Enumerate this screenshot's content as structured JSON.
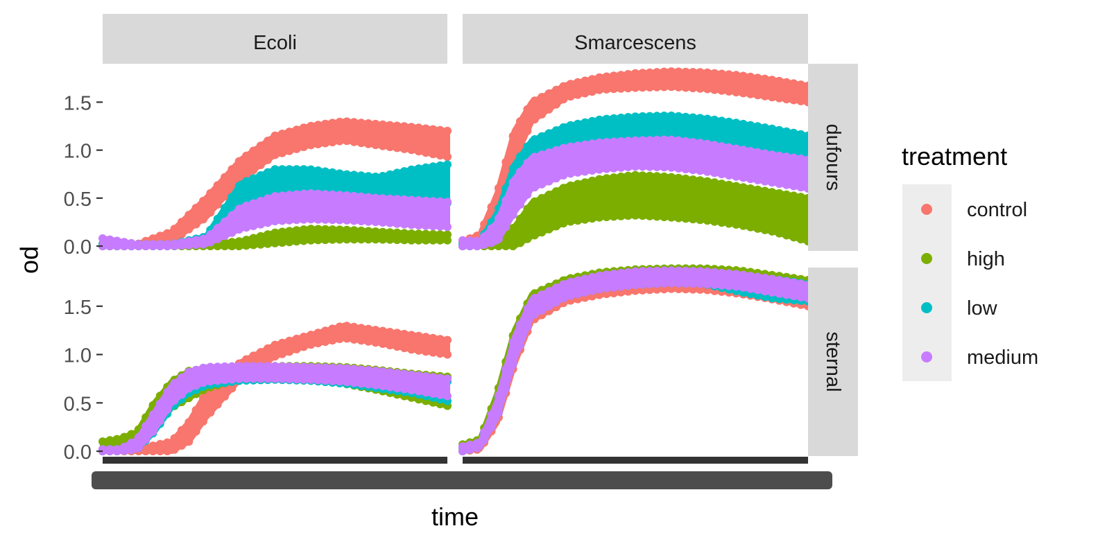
{
  "chart_data": {
    "type": "scatter",
    "xlabel": "time",
    "ylabel": "od",
    "ylim": [
      -0.05,
      1.9
    ],
    "yticks": [
      0.0,
      0.5,
      1.0,
      1.5
    ],
    "ytick_labels": [
      "0.0",
      "0.5",
      "1.0",
      "1.5"
    ],
    "x_tick_labels_overplotted": true,
    "grid": false,
    "legend_placement": "right",
    "legend": {
      "title": "treatment",
      "entries": [
        {
          "label": "control",
          "color": "#F8766D"
        },
        {
          "label": "high",
          "color": "#7CAE00"
        },
        {
          "label": "low",
          "color": "#00BFC4"
        },
        {
          "label": "medium",
          "color": "#C77CFF"
        }
      ]
    },
    "facet_columns": [
      "Ecoli",
      "Smarcescens"
    ],
    "facet_rows": [
      "dufours",
      "sternal"
    ],
    "x_domain": [
      0,
      1
    ],
    "panels": [
      {
        "column": "Ecoli",
        "row": "dufours",
        "series": [
          {
            "name": "control",
            "bands": [
              {
                "x": [
                  0,
                  0.1,
                  0.2,
                  0.3,
                  0.4,
                  0.5,
                  0.6,
                  0.7,
                  0.8,
                  0.9,
                  1.0
                ],
                "lower": [
                  0.0,
                  0.0,
                  0.05,
                  0.3,
                  0.7,
                  0.95,
                  1.05,
                  1.1,
                  1.05,
                  1.0,
                  0.93
                ],
                "upper": [
                  0.02,
                  0.02,
                  0.15,
                  0.5,
                  0.9,
                  1.15,
                  1.25,
                  1.3,
                  1.27,
                  1.24,
                  1.2
                ]
              }
            ]
          },
          {
            "name": "high",
            "bands": [
              {
                "x": [
                  0,
                  0.1,
                  0.2,
                  0.3,
                  0.4,
                  0.5,
                  0.6,
                  0.7,
                  0.8,
                  0.9,
                  1.0
                ],
                "lower": [
                  0.0,
                  0.0,
                  0.0,
                  0.0,
                  0.0,
                  0.03,
                  0.06,
                  0.07,
                  0.07,
                  0.06,
                  0.06
                ],
                "upper": [
                  0.02,
                  0.02,
                  0.02,
                  0.02,
                  0.05,
                  0.14,
                  0.18,
                  0.17,
                  0.15,
                  0.13,
                  0.12
                ]
              }
            ]
          },
          {
            "name": "low",
            "bands": [
              {
                "x": [
                  0,
                  0.1,
                  0.2,
                  0.3,
                  0.4,
                  0.5,
                  0.6,
                  0.7,
                  0.8,
                  0.9,
                  1.0
                ],
                "lower": [
                  0.0,
                  0.0,
                  0.0,
                  0.02,
                  0.45,
                  0.55,
                  0.55,
                  0.52,
                  0.5,
                  0.47,
                  0.45
                ],
                "upper": [
                  0.02,
                  0.02,
                  0.02,
                  0.1,
                  0.65,
                  0.8,
                  0.8,
                  0.75,
                  0.72,
                  0.8,
                  0.85
                ]
              }
            ]
          },
          {
            "name": "medium",
            "bands": [
              {
                "x": [
                  0,
                  0.1,
                  0.2,
                  0.3,
                  0.4,
                  0.5,
                  0.6,
                  0.7,
                  0.8,
                  0.9,
                  1.0
                ],
                "lower": [
                  0.0,
                  0.0,
                  0.0,
                  0.02,
                  0.18,
                  0.26,
                  0.28,
                  0.27,
                  0.25,
                  0.22,
                  0.2
                ],
                "upper": [
                  0.08,
                  0.02,
                  0.02,
                  0.08,
                  0.4,
                  0.52,
                  0.55,
                  0.53,
                  0.5,
                  0.48,
                  0.46
                ]
              }
            ]
          }
        ]
      },
      {
        "column": "Smarcescens",
        "row": "dufours",
        "series": [
          {
            "name": "control",
            "bands": [
              {
                "x": [
                  0,
                  0.05,
                  0.1,
                  0.15,
                  0.2,
                  0.3,
                  0.4,
                  0.5,
                  0.6,
                  0.7,
                  0.8,
                  0.9,
                  1.0
                ],
                "lower": [
                  0.0,
                  0.02,
                  0.3,
                  0.9,
                  1.3,
                  1.55,
                  1.63,
                  1.65,
                  1.66,
                  1.64,
                  1.6,
                  1.55,
                  1.5
                ],
                "upper": [
                  0.05,
                  0.12,
                  0.55,
                  1.2,
                  1.5,
                  1.68,
                  1.76,
                  1.8,
                  1.82,
                  1.81,
                  1.78,
                  1.73,
                  1.67
                ]
              }
            ]
          },
          {
            "name": "high",
            "bands": [
              {
                "x": [
                  0,
                  0.05,
                  0.1,
                  0.15,
                  0.2,
                  0.3,
                  0.4,
                  0.5,
                  0.6,
                  0.7,
                  0.8,
                  0.9,
                  1.0
                ],
                "lower": [
                  0.0,
                  0.0,
                  0.0,
                  0.0,
                  0.1,
                  0.25,
                  0.3,
                  0.32,
                  0.3,
                  0.27,
                  0.22,
                  0.15,
                  0.05
                ],
                "upper": [
                  0.02,
                  0.02,
                  0.05,
                  0.2,
                  0.45,
                  0.62,
                  0.7,
                  0.74,
                  0.72,
                  0.68,
                  0.62,
                  0.56,
                  0.5
                ]
              }
            ]
          },
          {
            "name": "low",
            "bands": [
              {
                "x": [
                  0,
                  0.05,
                  0.1,
                  0.15,
                  0.2,
                  0.3,
                  0.4,
                  0.5,
                  0.6,
                  0.7,
                  0.8,
                  0.9,
                  1.0
                ],
                "lower": [
                  0.0,
                  0.0,
                  0.1,
                  0.55,
                  0.85,
                  1.05,
                  1.1,
                  1.12,
                  1.13,
                  1.1,
                  1.05,
                  1.0,
                  0.93
                ],
                "upper": [
                  0.02,
                  0.05,
                  0.35,
                  0.85,
                  1.1,
                  1.25,
                  1.32,
                  1.35,
                  1.36,
                  1.33,
                  1.28,
                  1.22,
                  1.15
                ]
              }
            ]
          },
          {
            "name": "medium",
            "bands": [
              {
                "x": [
                  0,
                  0.05,
                  0.1,
                  0.15,
                  0.2,
                  0.3,
                  0.4,
                  0.5,
                  0.6,
                  0.7,
                  0.8,
                  0.9,
                  1.0
                ],
                "lower": [
                  0.0,
                  0.0,
                  0.05,
                  0.35,
                  0.6,
                  0.75,
                  0.8,
                  0.83,
                  0.82,
                  0.78,
                  0.72,
                  0.66,
                  0.6
                ],
                "upper": [
                  0.06,
                  0.05,
                  0.25,
                  0.7,
                  0.92,
                  1.03,
                  1.08,
                  1.1,
                  1.11,
                  1.07,
                  1.01,
                  0.95,
                  0.9
                ]
              }
            ]
          }
        ]
      },
      {
        "column": "Ecoli",
        "row": "sternal",
        "series": [
          {
            "name": "control",
            "bands": [
              {
                "x": [
                  0,
                  0.1,
                  0.2,
                  0.25,
                  0.3,
                  0.4,
                  0.5,
                  0.6,
                  0.7,
                  0.8,
                  0.9,
                  1.0
                ],
                "lower": [
                  0.0,
                  0.0,
                  0.0,
                  0.1,
                  0.35,
                  0.75,
                  0.98,
                  1.1,
                  1.17,
                  1.12,
                  1.05,
                  1.0
                ],
                "upper": [
                  0.02,
                  0.02,
                  0.1,
                  0.3,
                  0.6,
                  0.92,
                  1.1,
                  1.2,
                  1.3,
                  1.25,
                  1.2,
                  1.15
                ]
              }
            ]
          },
          {
            "name": "high",
            "bands": [
              {
                "x": [
                  0,
                  0.05,
                  0.1,
                  0.15,
                  0.2,
                  0.25,
                  0.3,
                  0.4,
                  0.5,
                  0.6,
                  0.7,
                  0.8,
                  0.9,
                  1.0
                ],
                "lower": [
                  0.0,
                  0.05,
                  0.08,
                  0.25,
                  0.45,
                  0.55,
                  0.65,
                  0.75,
                  0.76,
                  0.74,
                  0.7,
                  0.63,
                  0.55,
                  0.47
                ],
                "upper": [
                  0.1,
                  0.13,
                  0.2,
                  0.5,
                  0.72,
                  0.83,
                  0.85,
                  0.87,
                  0.88,
                  0.88,
                  0.87,
                  0.84,
                  0.8,
                  0.77
                ]
              }
            ]
          },
          {
            "name": "low",
            "bands": [
              {
                "x": [
                  0,
                  0.05,
                  0.1,
                  0.15,
                  0.2,
                  0.25,
                  0.3,
                  0.4,
                  0.5,
                  0.6,
                  0.7,
                  0.8,
                  0.9,
                  1.0
                ],
                "lower": [
                  0.0,
                  0.0,
                  0.02,
                  0.2,
                  0.45,
                  0.6,
                  0.68,
                  0.73,
                  0.74,
                  0.73,
                  0.7,
                  0.65,
                  0.6,
                  0.52
                ],
                "upper": [
                  0.02,
                  0.02,
                  0.1,
                  0.35,
                  0.62,
                  0.76,
                  0.83,
                  0.86,
                  0.87,
                  0.87,
                  0.85,
                  0.82,
                  0.77,
                  0.72
                ]
              }
            ]
          },
          {
            "name": "medium",
            "bands": [
              {
                "x": [
                  0,
                  0.05,
                  0.1,
                  0.15,
                  0.2,
                  0.25,
                  0.3,
                  0.4,
                  0.5,
                  0.6,
                  0.7,
                  0.8,
                  0.9,
                  1.0
                ],
                "lower": [
                  0.0,
                  0.0,
                  0.02,
                  0.22,
                  0.5,
                  0.65,
                  0.72,
                  0.75,
                  0.75,
                  0.74,
                  0.72,
                  0.68,
                  0.63,
                  0.57
                ],
                "upper": [
                  0.02,
                  0.02,
                  0.12,
                  0.4,
                  0.68,
                  0.82,
                  0.87,
                  0.88,
                  0.88,
                  0.87,
                  0.86,
                  0.83,
                  0.79,
                  0.75
                ]
              }
            ]
          }
        ]
      },
      {
        "column": "Smarcescens",
        "row": "sternal",
        "series": [
          {
            "name": "control",
            "bands": [
              {
                "x": [
                  0,
                  0.05,
                  0.1,
                  0.15,
                  0.2,
                  0.3,
                  0.4,
                  0.5,
                  0.6,
                  0.7,
                  0.8,
                  0.9,
                  1.0
                ],
                "lower": [
                  0.0,
                  0.02,
                  0.3,
                  0.9,
                  1.35,
                  1.55,
                  1.62,
                  1.66,
                  1.68,
                  1.67,
                  1.63,
                  1.57,
                  1.5
                ],
                "upper": [
                  0.03,
                  0.06,
                  0.45,
                  1.1,
                  1.48,
                  1.65,
                  1.73,
                  1.77,
                  1.79,
                  1.78,
                  1.74,
                  1.68,
                  1.62
                ]
              }
            ]
          },
          {
            "name": "high",
            "bands": [
              {
                "x": [
                  0,
                  0.05,
                  0.1,
                  0.15,
                  0.2,
                  0.3,
                  0.4,
                  0.5,
                  0.6,
                  0.7,
                  0.8,
                  0.9,
                  1.0
                ],
                "lower": [
                  0.0,
                  0.05,
                  0.4,
                  1.0,
                  1.45,
                  1.66,
                  1.73,
                  1.77,
                  1.79,
                  1.79,
                  1.77,
                  1.72,
                  1.66
                ],
                "upper": [
                  0.07,
                  0.12,
                  0.6,
                  1.25,
                  1.62,
                  1.78,
                  1.85,
                  1.88,
                  1.89,
                  1.89,
                  1.87,
                  1.82,
                  1.77
                ]
              }
            ]
          },
          {
            "name": "low",
            "bands": [
              {
                "x": [
                  0,
                  0.05,
                  0.1,
                  0.15,
                  0.2,
                  0.3,
                  0.4,
                  0.5,
                  0.6,
                  0.7,
                  0.8,
                  0.9,
                  1.0
                ],
                "lower": [
                  0.0,
                  0.04,
                  0.35,
                  0.95,
                  1.4,
                  1.6,
                  1.68,
                  1.72,
                  1.74,
                  1.73,
                  1.65,
                  1.58,
                  1.55
                ],
                "upper": [
                  0.04,
                  0.08,
                  0.5,
                  1.15,
                  1.55,
                  1.72,
                  1.8,
                  1.84,
                  1.86,
                  1.85,
                  1.82,
                  1.78,
                  1.73
                ]
              }
            ]
          },
          {
            "name": "medium",
            "bands": [
              {
                "x": [
                  0,
                  0.05,
                  0.1,
                  0.15,
                  0.2,
                  0.3,
                  0.4,
                  0.5,
                  0.6,
                  0.7,
                  0.8,
                  0.9,
                  1.0
                ],
                "lower": [
                  0.0,
                  0.04,
                  0.35,
                  0.95,
                  1.4,
                  1.6,
                  1.68,
                  1.72,
                  1.74,
                  1.73,
                  1.7,
                  1.64,
                  1.58
                ],
                "upper": [
                  0.05,
                  0.09,
                  0.52,
                  1.18,
                  1.57,
                  1.74,
                  1.82,
                  1.86,
                  1.87,
                  1.86,
                  1.83,
                  1.78,
                  1.72
                ]
              }
            ]
          }
        ]
      }
    ]
  }
}
